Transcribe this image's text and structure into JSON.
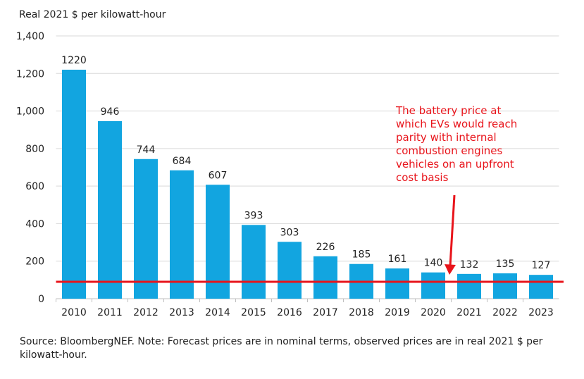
{
  "chart_data": {
    "type": "bar",
    "ylabel": "Real 2021 $ per kilowatt-hour",
    "categories": [
      "2010",
      "2011",
      "2012",
      "2013",
      "2014",
      "2015",
      "2016",
      "2017",
      "2018",
      "2019",
      "2020",
      "2021",
      "2022",
      "2023"
    ],
    "values": [
      1220,
      946,
      744,
      684,
      607,
      393,
      303,
      226,
      185,
      161,
      140,
      132,
      135,
      127
    ],
    "data_labels": [
      "1220",
      "946",
      "744",
      "684",
      "607",
      "393",
      "303",
      "226",
      "185",
      "161",
      "140",
      "132",
      "135",
      "127"
    ],
    "ylim": [
      0,
      1400
    ],
    "yticks": [
      0,
      200,
      400,
      600,
      800,
      1000,
      1200,
      1400
    ],
    "ytick_labels": [
      "0",
      "200",
      "400",
      "600",
      "800",
      "1,000",
      "1,200",
      "1,400"
    ],
    "grid": true,
    "reference_line": {
      "value": 90,
      "color": "#e8141b"
    },
    "annotation": {
      "lines": [
        "The battery price at",
        "which EVs would reach",
        "parity with internal",
        "combustion engines",
        "vehicles on an upfront",
        "cost basis"
      ],
      "color": "#e8141b",
      "arrow_points_to": "2020/2021"
    },
    "bar_color": "#12a5e0",
    "source": "Source: BloombergNEF. Note: Forecast prices are in nominal terms, observed prices are in real 2021 $ per kilowatt-hour."
  }
}
